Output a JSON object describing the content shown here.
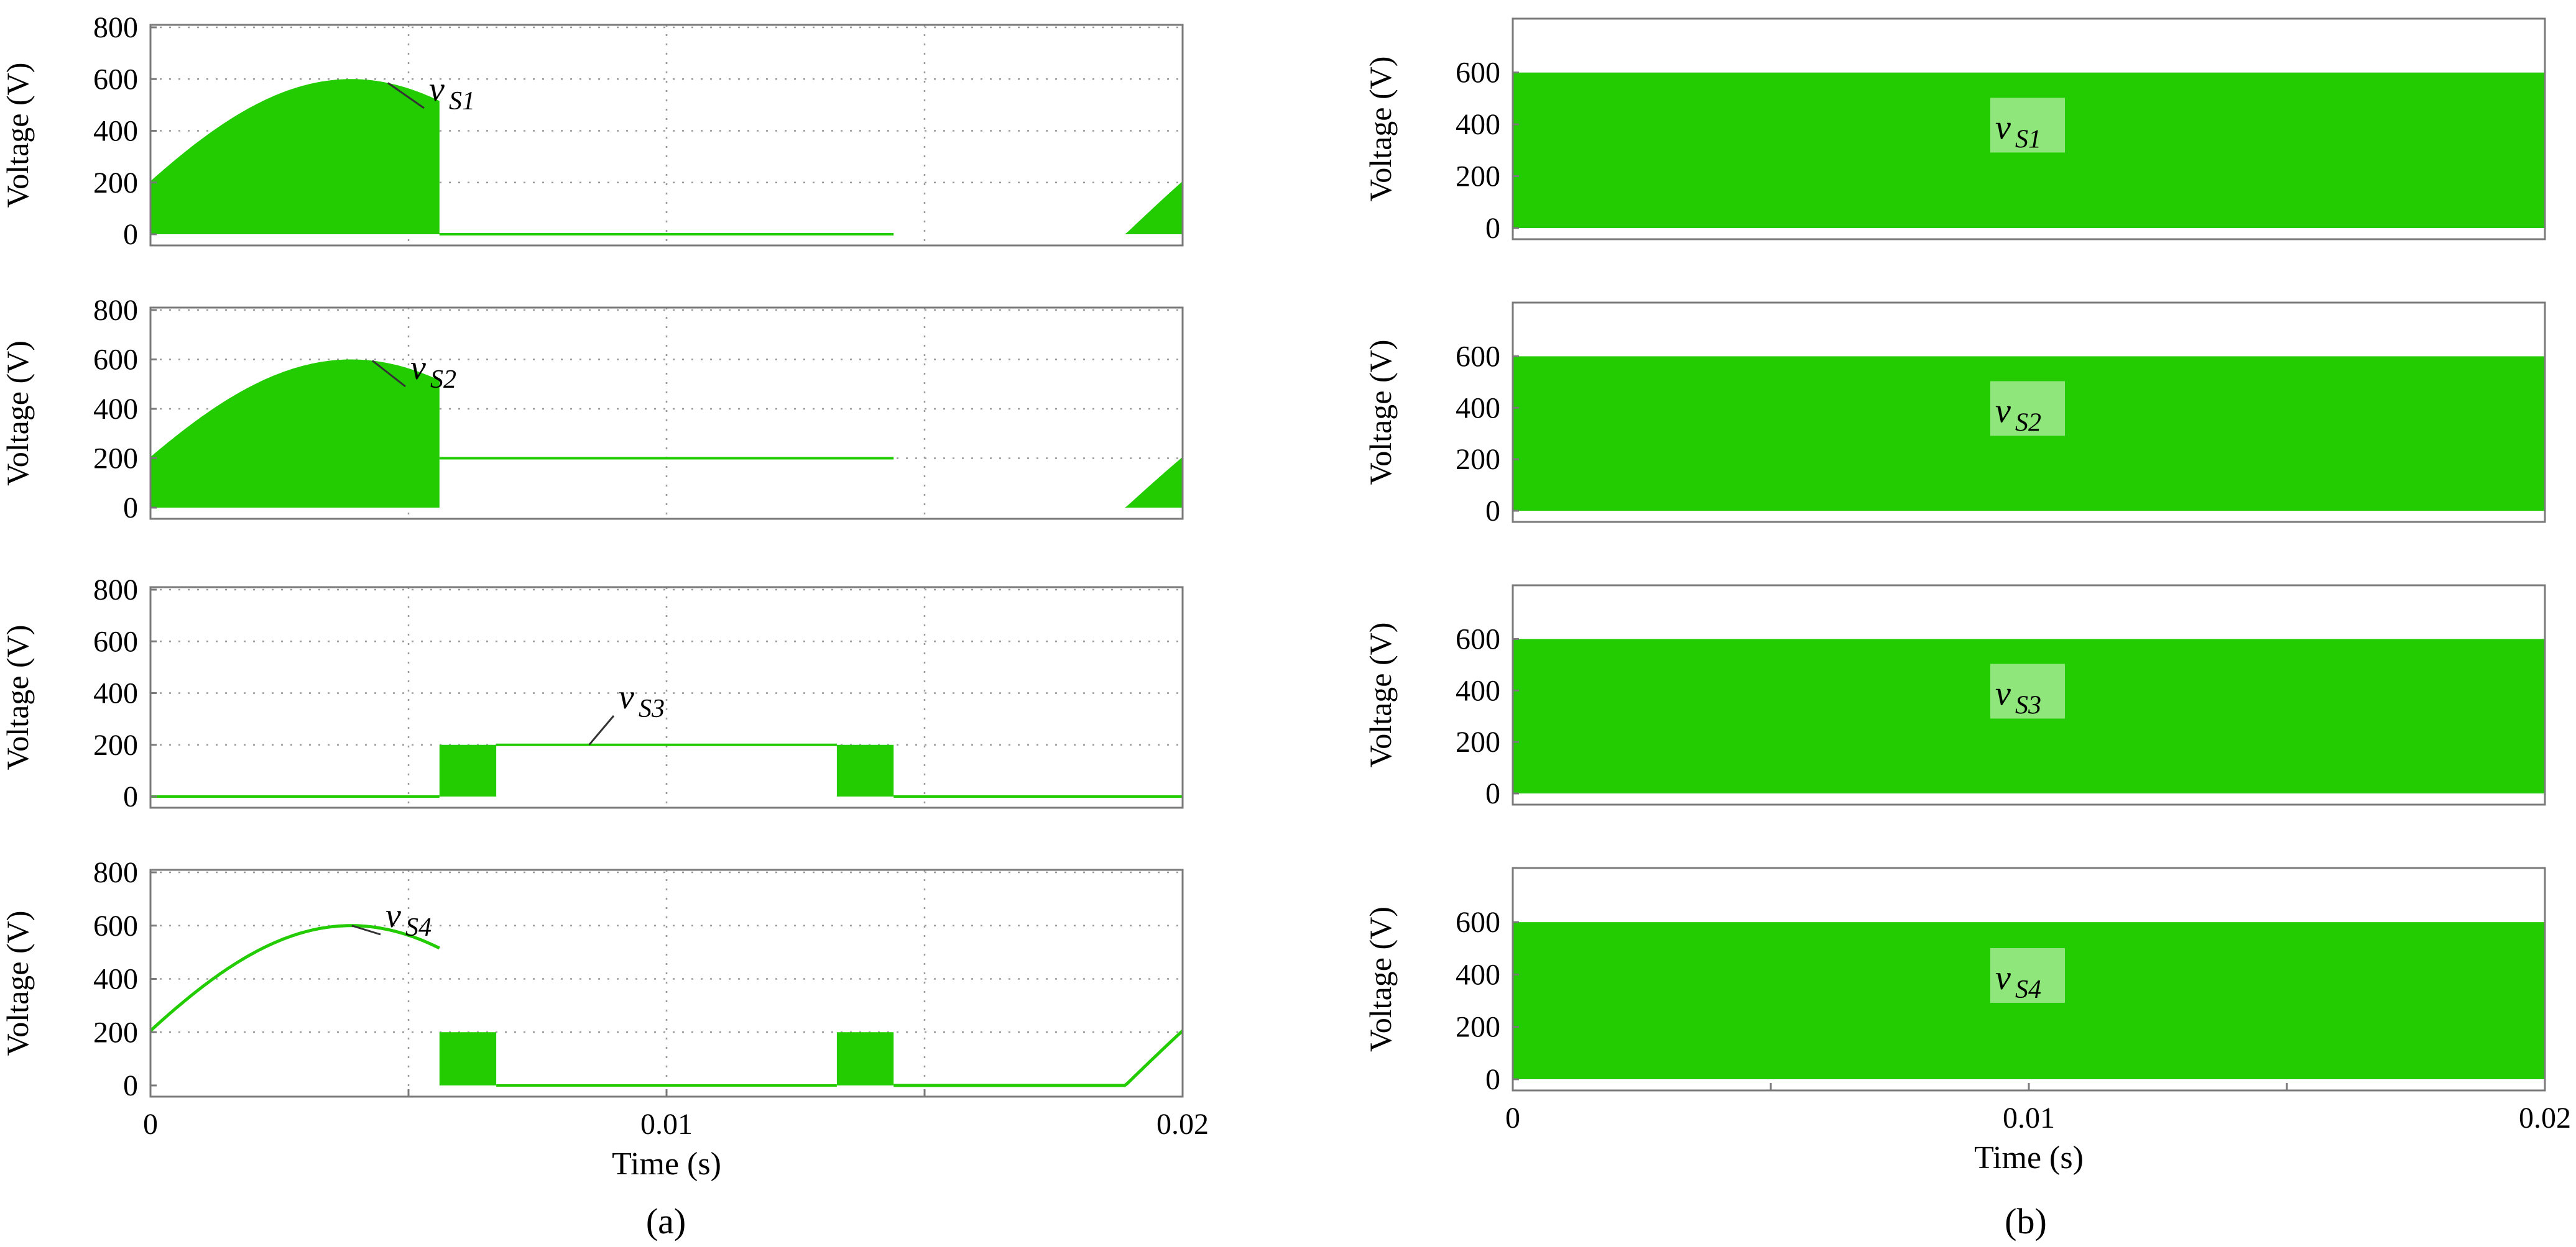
{
  "chart_data": [
    {
      "type": "area",
      "panel": "a",
      "ylabel": "Voltage (V)",
      "xlim": [
        0,
        0.02
      ],
      "ylim": [
        0,
        800
      ],
      "yticks": [
        "0",
        "200",
        "400",
        "600",
        "800"
      ],
      "grid": true,
      "series": [
        {
          "name": "v_S1",
          "label_main": "v",
          "label_sub": "S1",
          "color": "#22cc00",
          "kind": "switching",
          "peak": 600,
          "phase_deg": 20,
          "period_s": 0.02,
          "segments": [
            {
              "x": [
                0,
                0.0056
              ],
              "envelope": "sine"
            },
            {
              "x": [
                0.0056,
                0.0144
              ],
              "level": 0
            },
            {
              "x": [
                0.0144,
                0.02
              ],
              "envelope": "sine"
            }
          ]
        }
      ]
    },
    {
      "type": "area",
      "panel": "a",
      "ylabel": "Voltage (V)",
      "xlim": [
        0,
        0.02
      ],
      "ylim": [
        0,
        800
      ],
      "yticks": [
        "0",
        "200",
        "400",
        "600",
        "800"
      ],
      "grid": true,
      "series": [
        {
          "name": "v_S2",
          "label_main": "v",
          "label_sub": "S2",
          "color": "#22cc00",
          "kind": "switching",
          "peak": 600,
          "phase_deg": 20,
          "period_s": 0.02,
          "segments": [
            {
              "x": [
                0,
                0.0056
              ],
              "envelope": "sine"
            },
            {
              "x": [
                0.0056,
                0.0144
              ],
              "level": 200
            },
            {
              "x": [
                0.0144,
                0.02
              ],
              "envelope": "sine"
            }
          ]
        }
      ]
    },
    {
      "type": "area",
      "panel": "a",
      "ylabel": "Voltage (V)",
      "xlim": [
        0,
        0.02
      ],
      "ylim": [
        0,
        800
      ],
      "yticks": [
        "0",
        "200",
        "400",
        "600",
        "800"
      ],
      "grid": true,
      "series": [
        {
          "name": "v_S3",
          "label_main": "v",
          "label_sub": "S3",
          "color": "#22cc00",
          "kind": "switching",
          "segments": [
            {
              "x": [
                0,
                0.0056
              ],
              "level": 0
            },
            {
              "x": [
                0.0056,
                0.0067
              ],
              "band": [
                0,
                200
              ]
            },
            {
              "x": [
                0.0067,
                0.0133
              ],
              "level": 200
            },
            {
              "x": [
                0.0133,
                0.0144
              ],
              "band": [
                0,
                200
              ]
            },
            {
              "x": [
                0.0144,
                0.02
              ],
              "level": 0
            }
          ]
        }
      ]
    },
    {
      "type": "line",
      "panel": "a",
      "ylabel": "Voltage (V)",
      "xlabel": "Time (s)",
      "xlim": [
        0,
        0.02
      ],
      "ylim": [
        0,
        800
      ],
      "yticks": [
        "0",
        "200",
        "400",
        "600",
        "800"
      ],
      "xticks": [
        "0",
        "0.01",
        "0.02"
      ],
      "grid": true,
      "series": [
        {
          "name": "v_S4",
          "label_main": "v",
          "label_sub": "S4",
          "color": "#22cc00",
          "kind": "mixed",
          "peak": 600,
          "phase_deg": 20,
          "period_s": 0.02,
          "segments": [
            {
              "x": [
                0,
                0.0056
              ],
              "curve": "sine"
            },
            {
              "x": [
                0.0056,
                0.0067
              ],
              "band": [
                0,
                200
              ]
            },
            {
              "x": [
                0.0067,
                0.0133
              ],
              "level": 0
            },
            {
              "x": [
                0.0133,
                0.0144
              ],
              "band": [
                0,
                200
              ]
            },
            {
              "x": [
                0.0144,
                0.02
              ],
              "curve": "sine"
            }
          ]
        }
      ]
    },
    {
      "type": "area",
      "panel": "b",
      "ylabel": "Voltage (V)",
      "xlim": [
        0,
        0.02
      ],
      "ylim": [
        0,
        700
      ],
      "yticks": [
        "0",
        "200",
        "400",
        "600"
      ],
      "grid": false,
      "series": [
        {
          "name": "v_S1",
          "label_main": "v",
          "label_sub": "S1",
          "color": "#22cc00",
          "kind": "switching",
          "segments": [
            {
              "x": [
                0,
                0.02
              ],
              "band": [
                0,
                600
              ]
            }
          ]
        }
      ]
    },
    {
      "type": "area",
      "panel": "b",
      "ylabel": "Voltage (V)",
      "xlim": [
        0,
        0.02
      ],
      "ylim": [
        0,
        700
      ],
      "yticks": [
        "0",
        "200",
        "400",
        "600"
      ],
      "grid": false,
      "series": [
        {
          "name": "v_S2",
          "label_main": "v",
          "label_sub": "S2",
          "color": "#22cc00",
          "kind": "switching",
          "segments": [
            {
              "x": [
                0,
                0.02
              ],
              "band": [
                0,
                600
              ]
            }
          ]
        }
      ]
    },
    {
      "type": "area",
      "panel": "b",
      "ylabel": "Voltage (V)",
      "xlim": [
        0,
        0.02
      ],
      "ylim": [
        0,
        700
      ],
      "yticks": [
        "0",
        "200",
        "400",
        "600"
      ],
      "grid": false,
      "series": [
        {
          "name": "v_S3",
          "label_main": "v",
          "label_sub": "S3",
          "color": "#22cc00",
          "kind": "switching",
          "segments": [
            {
              "x": [
                0,
                0.02
              ],
              "band": [
                0,
                600
              ]
            }
          ]
        }
      ]
    },
    {
      "type": "area",
      "panel": "b",
      "ylabel": "Voltage (V)",
      "xlabel": "Time (s)",
      "xlim": [
        0,
        0.02
      ],
      "ylim": [
        0,
        700
      ],
      "yticks": [
        "0",
        "200",
        "400",
        "600"
      ],
      "xticks": [
        "0",
        "0.01",
        "0.02"
      ],
      "grid": false,
      "series": [
        {
          "name": "v_S4",
          "label_main": "v",
          "label_sub": "S4",
          "color": "#22cc00",
          "kind": "switching",
          "segments": [
            {
              "x": [
                0,
                0.02
              ],
              "band": [
                0,
                600
              ]
            }
          ]
        }
      ]
    }
  ],
  "captions": {
    "a": "(a)",
    "b": "(b)"
  },
  "colors": {
    "waveform": "#22cc00",
    "label_box": "#8fe67a",
    "frame": "#7a7a7a",
    "grid": "#9a9a9a"
  }
}
